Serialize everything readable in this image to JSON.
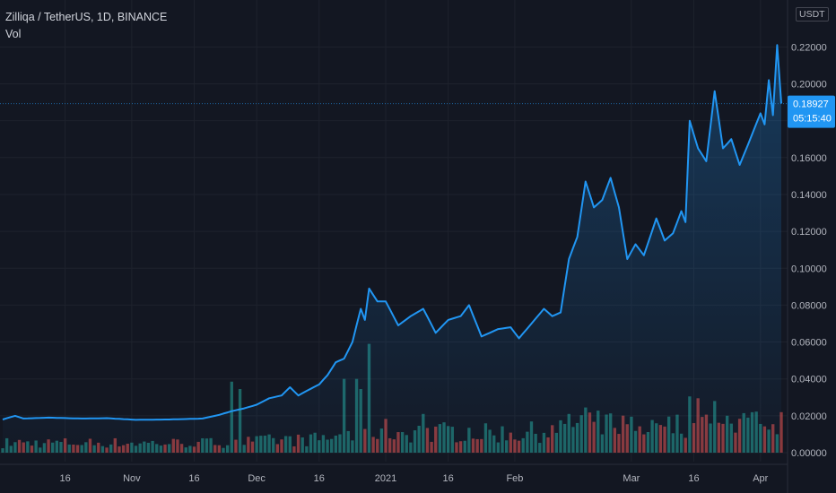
{
  "legend": {
    "symbol": "Zilliqa / TetherUS, 1D, BINANCE",
    "volume": "Vol"
  },
  "axis": {
    "unit": "USDT"
  },
  "last_price": {
    "value": "0.18927",
    "countdown": "05:15:40"
  },
  "colors": {
    "line": "#2196f3",
    "up": "#26a69a",
    "down": "#ef5350",
    "background": "#131722",
    "text": "#b2b5be",
    "grid": "#1e222d"
  },
  "chart_data": {
    "type": "area",
    "title": "",
    "ylim": [
      0,
      0.235
    ],
    "yticks": [
      "0.00000",
      "0.02000",
      "0.04000",
      "0.06000",
      "0.08000",
      "0.10000",
      "0.12000",
      "0.14000",
      "0.16000",
      "0.18000",
      "0.20000",
      "0.22000"
    ],
    "xticks": [
      {
        "label": "16",
        "date": "2020-10-16"
      },
      {
        "label": "Nov",
        "date": "2020-11-01"
      },
      {
        "label": "16",
        "date": "2020-11-16"
      },
      {
        "label": "Dec",
        "date": "2020-12-01"
      },
      {
        "label": "16",
        "date": "2020-12-16"
      },
      {
        "label": "2021",
        "date": "2021-01-01"
      },
      {
        "label": "16",
        "date": "2021-01-16"
      },
      {
        "label": "Feb",
        "date": "2021-02-01"
      },
      {
        "label": "Mar",
        "date": "2021-03-01"
      },
      {
        "label": "16",
        "date": "2021-03-16"
      },
      {
        "label": "Apr",
        "date": "2021-04-01"
      }
    ],
    "date_range": [
      "2020-10-01",
      "2021-04-06"
    ],
    "price_anchors": [
      [
        "2020-10-01",
        0.018
      ],
      [
        "2020-10-04",
        0.02
      ],
      [
        "2020-10-06",
        0.0185
      ],
      [
        "2020-10-12",
        0.019
      ],
      [
        "2020-10-20",
        0.0185
      ],
      [
        "2020-10-26",
        0.0187
      ],
      [
        "2020-11-02",
        0.0178
      ],
      [
        "2020-11-10",
        0.018
      ],
      [
        "2020-11-18",
        0.0185
      ],
      [
        "2020-11-22",
        0.0205
      ],
      [
        "2020-11-25",
        0.0225
      ],
      [
        "2020-11-28",
        0.024
      ],
      [
        "2020-12-01",
        0.026
      ],
      [
        "2020-12-04",
        0.0295
      ],
      [
        "2020-12-07",
        0.031
      ],
      [
        "2020-12-09",
        0.0355
      ],
      [
        "2020-12-11",
        0.031
      ],
      [
        "2020-12-13",
        0.0335
      ],
      [
        "2020-12-16",
        0.037
      ],
      [
        "2020-12-18",
        0.042
      ],
      [
        "2020-12-20",
        0.049
      ],
      [
        "2020-12-22",
        0.051
      ],
      [
        "2020-12-24",
        0.06
      ],
      [
        "2020-12-26",
        0.078
      ],
      [
        "2020-12-27",
        0.072
      ],
      [
        "2020-12-28",
        0.089
      ],
      [
        "2020-12-30",
        0.082
      ],
      [
        "2021-01-01",
        0.082
      ],
      [
        "2021-01-04",
        0.069
      ],
      [
        "2021-01-07",
        0.074
      ],
      [
        "2021-01-10",
        0.078
      ],
      [
        "2021-01-13",
        0.065
      ],
      [
        "2021-01-16",
        0.072
      ],
      [
        "2021-01-19",
        0.074
      ],
      [
        "2021-01-21",
        0.08
      ],
      [
        "2021-01-24",
        0.063
      ],
      [
        "2021-01-28",
        0.067
      ],
      [
        "2021-01-31",
        0.068
      ],
      [
        "2021-02-02",
        0.062
      ],
      [
        "2021-02-05",
        0.07
      ],
      [
        "2021-02-08",
        0.078
      ],
      [
        "2021-02-10",
        0.074
      ],
      [
        "2021-02-12",
        0.076
      ],
      [
        "2021-02-14",
        0.105
      ],
      [
        "2021-02-16",
        0.117
      ],
      [
        "2021-02-18",
        0.147
      ],
      [
        "2021-02-20",
        0.133
      ],
      [
        "2021-02-22",
        0.137
      ],
      [
        "2021-02-24",
        0.149
      ],
      [
        "2021-02-26",
        0.133
      ],
      [
        "2021-02-28",
        0.105
      ],
      [
        "2021-03-02",
        0.113
      ],
      [
        "2021-03-04",
        0.107
      ],
      [
        "2021-03-07",
        0.127
      ],
      [
        "2021-03-09",
        0.115
      ],
      [
        "2021-03-11",
        0.119
      ],
      [
        "2021-03-13",
        0.131
      ],
      [
        "2021-03-14",
        0.125
      ],
      [
        "2021-03-15",
        0.18
      ],
      [
        "2021-03-17",
        0.165
      ],
      [
        "2021-03-19",
        0.158
      ],
      [
        "2021-03-21",
        0.196
      ],
      [
        "2021-03-23",
        0.165
      ],
      [
        "2021-03-25",
        0.17
      ],
      [
        "2021-03-27",
        0.156
      ],
      [
        "2021-03-29",
        0.167
      ],
      [
        "2021-04-01",
        0.184
      ],
      [
        "2021-04-02",
        0.178
      ],
      [
        "2021-04-03",
        0.202
      ],
      [
        "2021-04-04",
        0.183
      ],
      [
        "2021-04-05",
        0.221
      ],
      [
        "2021-04-06",
        0.1893
      ]
    ],
    "volume_spikes": [
      [
        "2020-11-25",
        0.0385
      ],
      [
        "2020-11-27",
        0.0345
      ],
      [
        "2020-12-28",
        0.059
      ],
      [
        "2020-12-26",
        0.0345
      ],
      [
        "2020-12-25",
        0.04
      ],
      [
        "2020-12-22",
        0.04
      ],
      [
        "2021-01-10",
        0.021
      ],
      [
        "2021-02-18",
        0.0245
      ],
      [
        "2021-02-14",
        0.021
      ],
      [
        "2021-03-15",
        0.0305
      ],
      [
        "2021-03-17",
        0.0295
      ],
      [
        "2021-03-21",
        0.028
      ],
      [
        "2021-04-03",
        0.0125
      ],
      [
        "2021-04-05",
        0.01
      ]
    ]
  }
}
